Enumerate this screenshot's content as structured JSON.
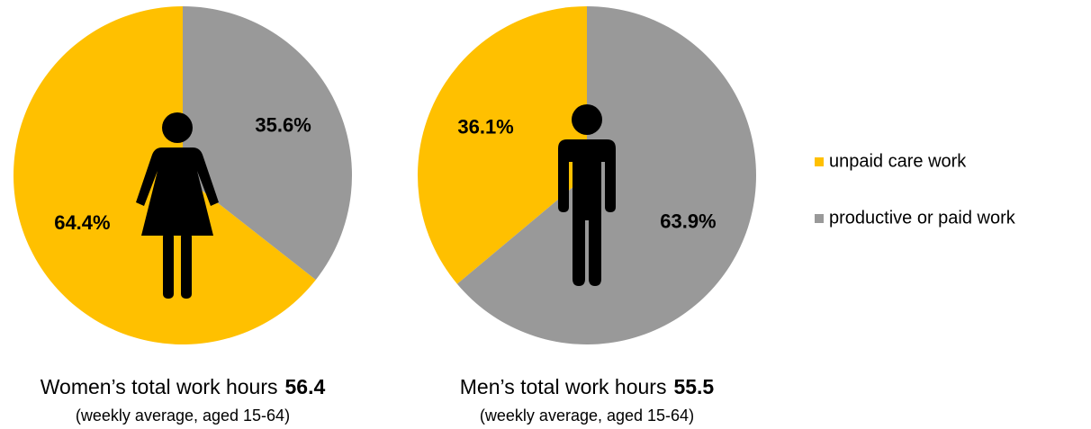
{
  "chart_data": [
    {
      "type": "pie",
      "title": "Women’s total work hours",
      "total_hours": 56.4,
      "subtitle": "(weekly average, aged 15-64)",
      "categories": [
        "unpaid care work",
        "productive or paid work"
      ],
      "values": [
        64.4,
        35.6
      ],
      "value_labels": [
        "64.4%",
        "35.6%"
      ],
      "colors": [
        "#ffc000",
        "#999999"
      ],
      "figure": "woman"
    },
    {
      "type": "pie",
      "title": "Men’s total work hours",
      "total_hours": 55.5,
      "subtitle": "(weekly average, aged 15-64)",
      "categories": [
        "unpaid care work",
        "productive or paid work"
      ],
      "values": [
        36.1,
        63.9
      ],
      "value_labels": [
        "36.1%",
        "63.9%"
      ],
      "colors": [
        "#ffc000",
        "#999999"
      ],
      "figure": "man"
    }
  ]
}
